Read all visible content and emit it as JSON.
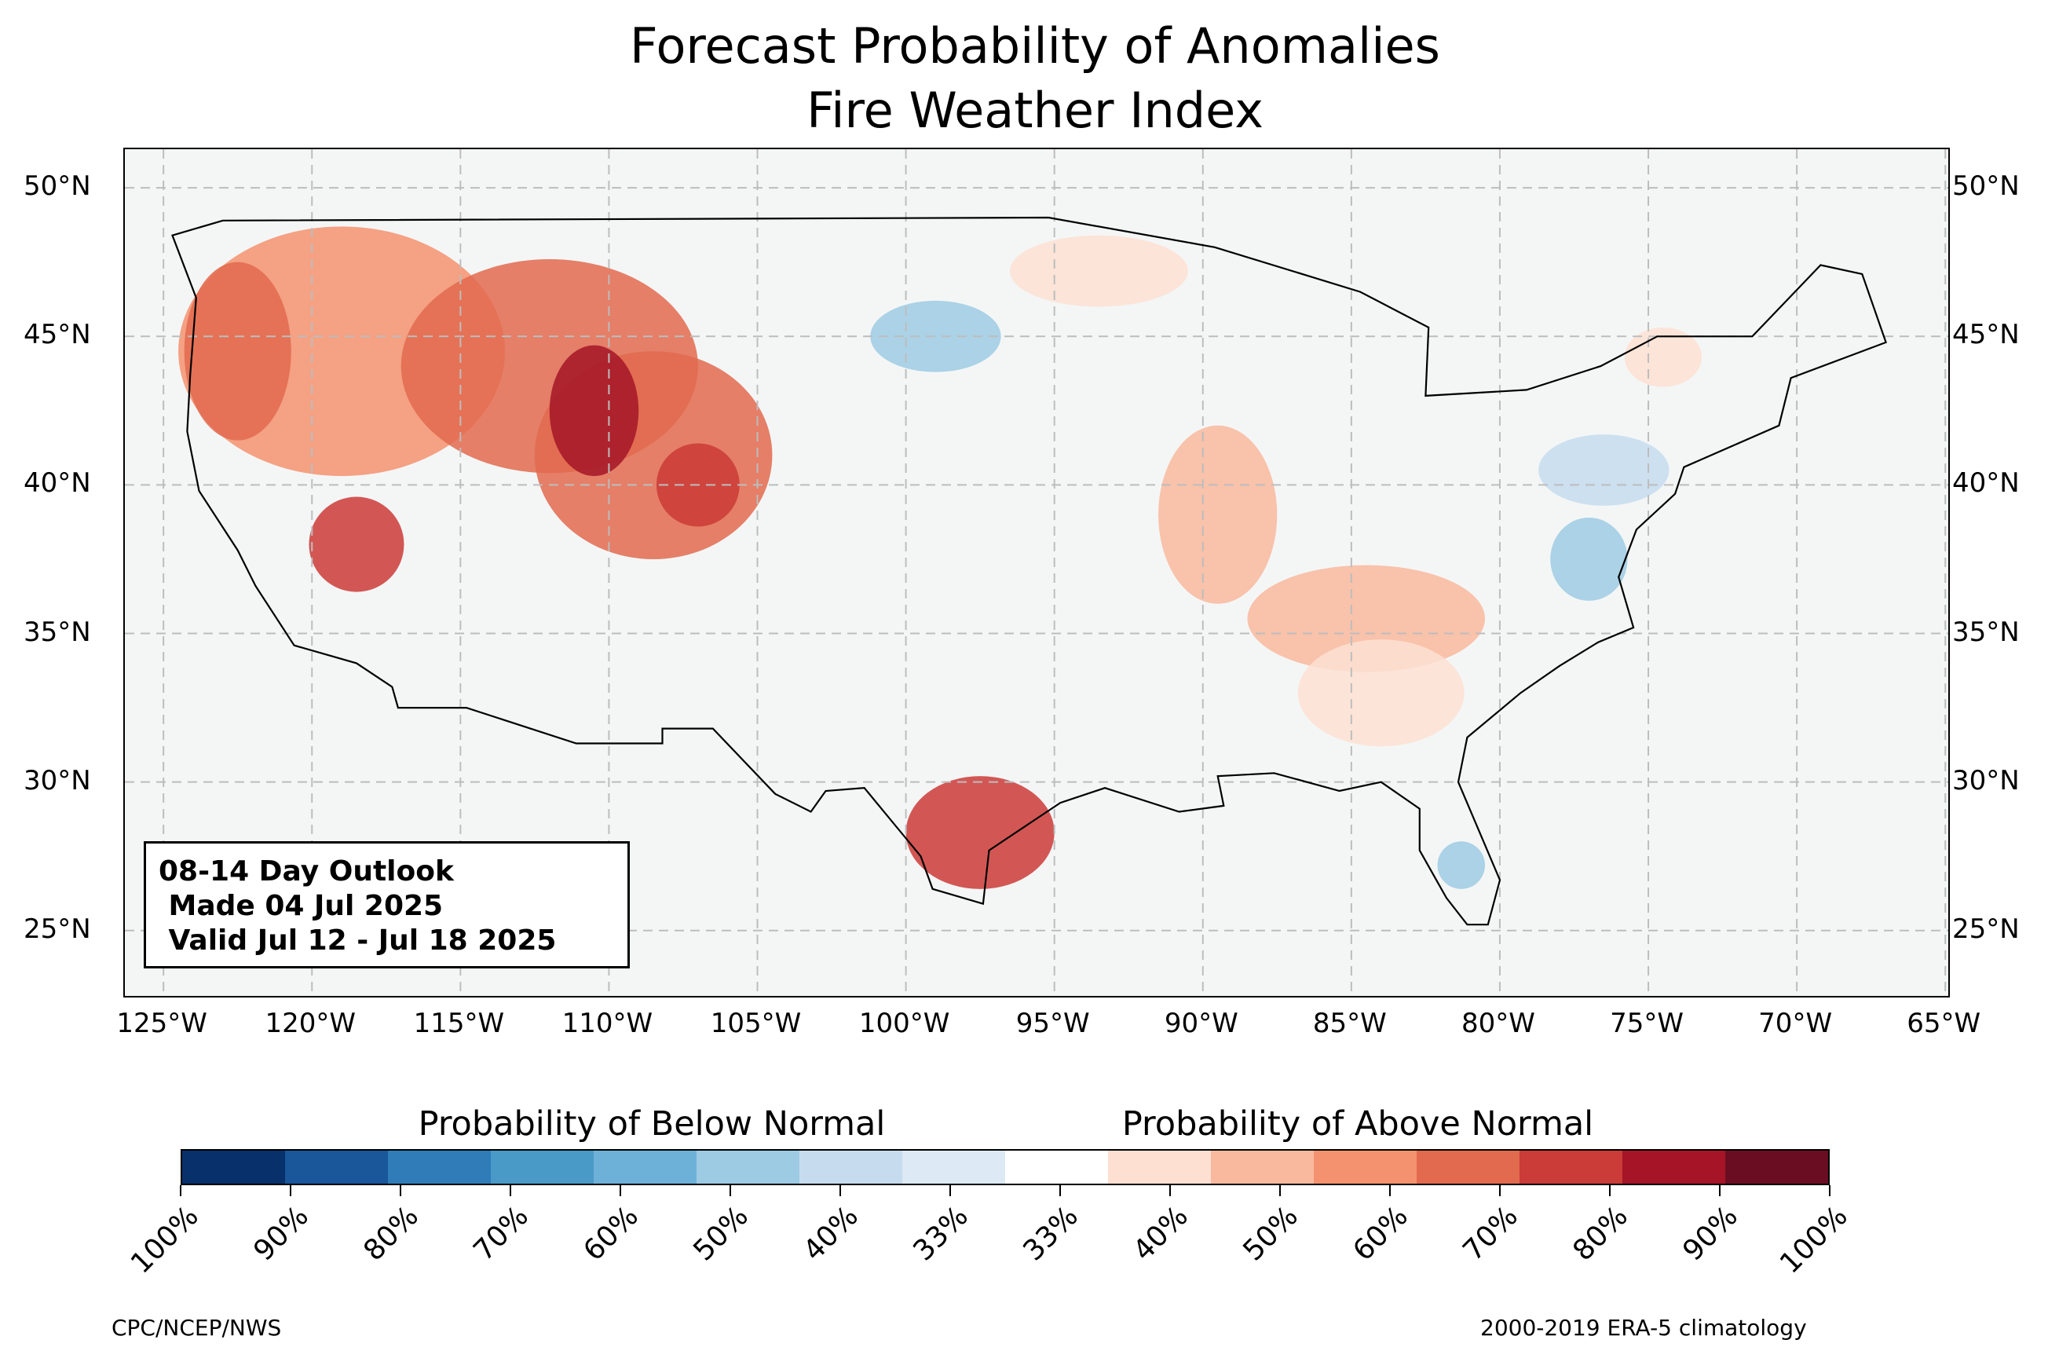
{
  "title": {
    "line1": "Forecast Probability of Anomalies",
    "line2": "Fire Weather Index"
  },
  "map": {
    "lat_labels": [
      "50°N",
      "45°N",
      "40°N",
      "35°N",
      "30°N",
      "25°N"
    ],
    "lat_values": [
      50,
      45,
      40,
      35,
      30,
      25
    ],
    "lon_labels": [
      "125°W",
      "120°W",
      "115°W",
      "110°W",
      "105°W",
      "100°W",
      "95°W",
      "90°W",
      "85°W",
      "80°W",
      "75°W",
      "70°W",
      "65°W"
    ],
    "lon_values": [
      -125,
      -120,
      -115,
      -110,
      -105,
      -100,
      -95,
      -90,
      -85,
      -80,
      -75,
      -70,
      -65
    ],
    "extent": {
      "lon_min": -126.3,
      "lon_max": -64.9,
      "lat_min": 22.8,
      "lat_max": 51.3
    },
    "background_color": "#f4f6f6",
    "gridlines": true
  },
  "outlook_box": {
    "line1": "08-14 Day Outlook",
    "line2": " Made 04 Jul 2025",
    "line3": " Valid Jul 12 - Jul 18 2025"
  },
  "colorbar": {
    "below_label": "Probability of Below Normal",
    "above_label": "Probability of Above Normal",
    "tick_labels": [
      "100%",
      "90%",
      "80%",
      "70%",
      "60%",
      "50%",
      "40%",
      "33%",
      "33%",
      "40%",
      "50%",
      "60%",
      "70%",
      "80%",
      "90%",
      "100%"
    ],
    "colors": [
      "#08306b",
      "#1a569a",
      "#2f7cb9",
      "#4a9ac8",
      "#6eb1d8",
      "#9dcbe3",
      "#c6dcee",
      "#dde9f4",
      "#ffffff",
      "#fde0d2",
      "#f9b99e",
      "#f4926f",
      "#e26a4f",
      "#cb3b37",
      "#a51527",
      "#6b0d22"
    ]
  },
  "footer": {
    "left": "CPC/NCEP/NWS",
    "right": "2000-2019 ERA-5 climatology"
  }
}
